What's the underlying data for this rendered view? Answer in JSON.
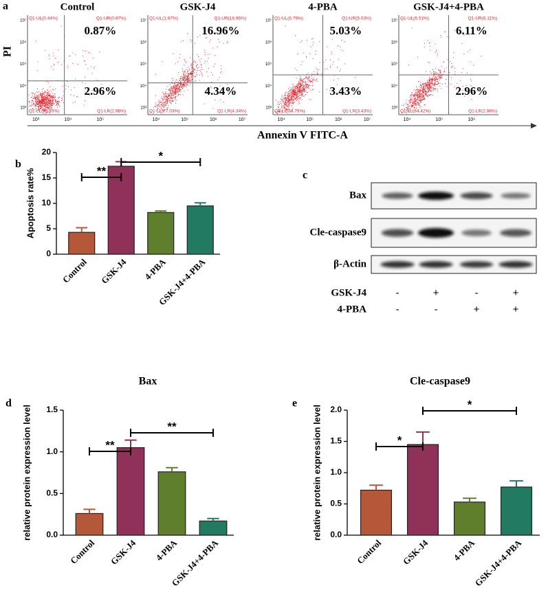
{
  "flow": {
    "panel_label": "a",
    "x_label": "Annexin V FITC-A",
    "y_label": "PI",
    "plots": [
      {
        "title": "Control",
        "upper_right": "0.87%",
        "lower_right": "2.96%",
        "gates": [
          "Q1-UL(0.44%)",
          "Q1-UR(0.87%)",
          "Q1-LL(95.73%)",
          "Q1-LR(2.96%)"
        ],
        "x_ticks": [
          "10³",
          "10⁴",
          "10⁵"
        ],
        "y_ticks": [
          "10³",
          "10⁴",
          "10⁵",
          "10⁶",
          "10⁷"
        ]
      },
      {
        "title": "GSK-J4",
        "upper_right": "16.96%",
        "lower_right": "4.34%",
        "gates": [
          "Q1-UL(1.67%)",
          "Q1-UR(16.96%)",
          "Q1-LL(77.03%)",
          "Q1-LR(4.34%)"
        ],
        "x_ticks": [
          "10⁴",
          "10⁵",
          "10⁶",
          "10⁷"
        ],
        "y_ticks": [
          "10³",
          "10⁴",
          "10⁵",
          "10⁶",
          "10⁷"
        ]
      },
      {
        "title": "4-PBA",
        "upper_right": "5.03%",
        "lower_right": "3.43%",
        "gates": [
          "Q1-UL(6.79%)",
          "Q1-UR(5.03%)",
          "Q1-LL(84.75%)",
          "Q1-LR(3.43%)"
        ],
        "x_ticks": [
          "10⁴",
          "10⁵",
          "10⁶",
          "10⁷"
        ],
        "y_ticks": [
          "10³",
          "10⁴",
          "10⁵",
          "10⁶",
          "10⁷"
        ]
      },
      {
        "title": "GSK-J4+4-PBA",
        "upper_right": "6.11%",
        "lower_right": "2.96%",
        "gates": [
          "Q1-UL(6.51%)",
          "Q1-UR(6.11%)",
          "Q1-LL(84.42%)",
          "Q1-LR(2.96%)"
        ],
        "x_ticks": [
          "10⁴",
          "10⁵",
          "10⁶"
        ],
        "y_ticks": [
          "10³",
          "10⁴",
          "10⁵",
          "10⁶",
          "10⁷"
        ]
      }
    ]
  },
  "blot": {
    "panel_label": "c",
    "proteins": [
      "Bax",
      "Cle-caspase9",
      "β-Actin"
    ],
    "treatments": [
      {
        "name": "GSK-J4",
        "signs": [
          "-",
          "+",
          "-",
          "+"
        ]
      },
      {
        "name": "4-PBA",
        "signs": [
          "-",
          "-",
          "+",
          "+"
        ]
      }
    ]
  },
  "chart_data": [
    {
      "type": "bar",
      "panel_label": "b",
      "y_label": "Apoptosis rate%",
      "categories": [
        "Control",
        "GSK-J4",
        "4-PBA",
        "GSK-J4+4-PBA"
      ],
      "values": [
        4.3,
        17.3,
        8.2,
        9.5
      ],
      "errors": [
        0.9,
        0.9,
        0.3,
        0.6
      ],
      "colors": [
        "#b5583a",
        "#8f3159",
        "#5f7f2c",
        "#237a62"
      ],
      "ylim": [
        0,
        20
      ],
      "yticks": [
        0,
        5,
        10,
        15,
        20
      ],
      "annotations": [
        {
          "label": "**",
          "between": [
            "Control",
            "GSK-J4"
          ]
        },
        {
          "label": "*",
          "between": [
            "GSK-J4",
            "GSK-J4+4-PBA"
          ]
        }
      ]
    },
    {
      "type": "bar",
      "panel_label": "d",
      "title": "Bax",
      "y_label": "relative protein expression level",
      "categories": [
        "Control",
        "GSK-J4",
        "4-PBA",
        "GSK-J4+4-PBA"
      ],
      "values": [
        0.26,
        1.05,
        0.76,
        0.17
      ],
      "errors": [
        0.05,
        0.09,
        0.05,
        0.03
      ],
      "colors": [
        "#b5583a",
        "#8f3159",
        "#5f7f2c",
        "#237a62"
      ],
      "ylim": [
        0,
        1.5
      ],
      "yticks": [
        {
          "value": 0,
          "label": "0.0"
        },
        0.5,
        {
          "value": 1,
          "label": "1.0"
        },
        1.5
      ],
      "annotations": [
        {
          "label": "**",
          "between": [
            "Control",
            "GSK-J4"
          ]
        },
        {
          "label": "**",
          "between": [
            "GSK-J4",
            "GSK-J4+4-PBA"
          ]
        }
      ]
    },
    {
      "type": "bar",
      "panel_label": "e",
      "title": "Cle-caspase9",
      "y_label": "relative protein expression level",
      "categories": [
        "Control",
        "GSK-J4",
        "4-PBA",
        "GSK-J4+4-PBA"
      ],
      "values": [
        0.72,
        1.45,
        0.53,
        0.77
      ],
      "errors": [
        0.08,
        0.2,
        0.06,
        0.1
      ],
      "colors": [
        "#b5583a",
        "#8f3159",
        "#5f7f2c",
        "#237a62"
      ],
      "ylim": [
        0,
        2
      ],
      "yticks": [
        {
          "value": 0,
          "label": "0.0"
        },
        0.5,
        {
          "value": 1,
          "label": "1.0"
        },
        1.5,
        {
          "value": 2,
          "label": "2.0"
        }
      ],
      "annotations": [
        {
          "label": "*",
          "between": [
            "Control",
            "GSK-J4"
          ]
        },
        {
          "label": "*",
          "between": [
            "GSK-J4",
            "GSK-J4+4-PBA"
          ]
        }
      ]
    }
  ]
}
